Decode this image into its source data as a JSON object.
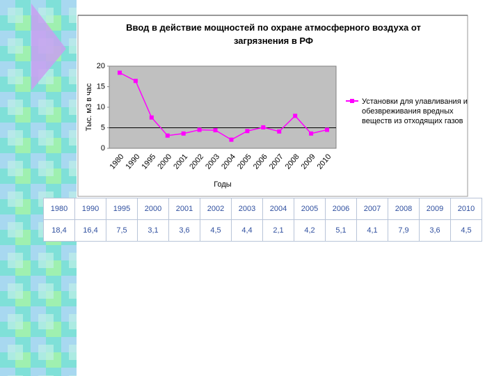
{
  "chart_data": {
    "type": "line",
    "title": "Ввод в действие мощностей по охране атмосферного воздуха от загрязнения в РФ",
    "y_label": "Тыс. м3 в час",
    "x_label": "Годы",
    "categories": [
      "1980",
      "1990",
      "1995",
      "2000",
      "2001",
      "2002",
      "2003",
      "2004",
      "2005",
      "2006",
      "2007",
      "2008",
      "2009",
      "2010"
    ],
    "series": [
      {
        "name": "Установки для улавливания и обезвреживания вредных веществ из отходящих газов",
        "color": "#ff00ff",
        "values": [
          18.4,
          16.4,
          7.5,
          3.1,
          3.6,
          4.5,
          4.4,
          2.1,
          4.2,
          5.1,
          4.1,
          7.9,
          3.6,
          4.5
        ],
        "value_labels": [
          "18,4",
          "16,4",
          "7,5",
          "3,1",
          "3,6",
          "4,5",
          "4,4",
          "2,1",
          "4,2",
          "5,1",
          "4,1",
          "7,9",
          "3,6",
          "4,5"
        ]
      }
    ],
    "ylim": [
      0,
      20
    ],
    "yticks": [
      0,
      5,
      10,
      15,
      20
    ],
    "reference_line": 5
  }
}
